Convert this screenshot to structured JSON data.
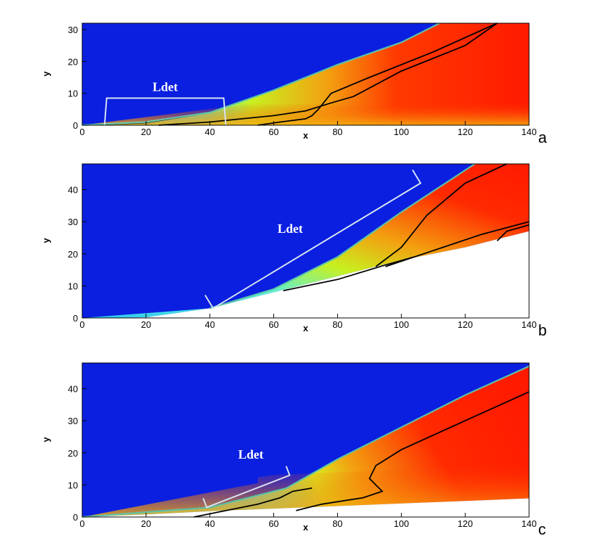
{
  "chart_data": [
    {
      "type": "heatmap",
      "panel_label": "a",
      "xlabel": "x",
      "ylabel": "y",
      "xlim": [
        0,
        140
      ],
      "ylim": [
        0,
        32
      ],
      "x_ticks": [
        0,
        20,
        40,
        60,
        80,
        100,
        120,
        140
      ],
      "y_ticks": [
        0,
        10,
        20,
        30
      ],
      "colors": {
        "background": "#0a1fe0",
        "cool": "#2ec8f5",
        "green": "#b4ee30",
        "hot": "#ff1a00",
        "warm": "#f39a10"
      },
      "wedge_surface": [
        [
          0,
          0
        ],
        [
          140,
          0
        ]
      ],
      "shock_front": [
        [
          0,
          0
        ],
        [
          20,
          1
        ],
        [
          40,
          4
        ],
        [
          60,
          11
        ],
        [
          80,
          19
        ],
        [
          100,
          26
        ],
        [
          112,
          32
        ]
      ],
      "contour_lines": [
        [
          [
            0,
            0
          ],
          [
            20,
            0.8
          ],
          [
            40,
            4
          ],
          [
            60,
            11
          ],
          [
            80,
            19
          ],
          [
            100,
            26
          ],
          [
            112,
            32
          ]
        ],
        [
          [
            24,
            0
          ],
          [
            40,
            1
          ],
          [
            50,
            2
          ],
          [
            60,
            3
          ],
          [
            70,
            4.5
          ],
          [
            78,
            7
          ],
          [
            85,
            9
          ],
          [
            100,
            17
          ],
          [
            120,
            25
          ],
          [
            130,
            32
          ]
        ],
        [
          [
            55,
            0
          ],
          [
            62,
            1
          ],
          [
            70,
            2
          ],
          [
            72,
            3
          ],
          [
            74,
            5
          ],
          [
            78,
            10
          ],
          [
            90,
            15
          ],
          [
            110,
            23
          ],
          [
            130,
            32
          ]
        ]
      ],
      "annotation": {
        "text": "Ldet",
        "x_start": 7,
        "x_end": 45,
        "y": 8.5
      }
    },
    {
      "type": "heatmap",
      "panel_label": "b",
      "xlabel": "x",
      "ylabel": "y",
      "xlim": [
        0,
        140
      ],
      "ylim": [
        0,
        48
      ],
      "x_ticks": [
        0,
        20,
        40,
        60,
        80,
        100,
        120,
        140
      ],
      "y_ticks": [
        0,
        10,
        20,
        30,
        40
      ],
      "colors": {
        "background": "#0a1fe0",
        "cool": "#2ec8f5",
        "green": "#b4ee30",
        "hot": "#ff1a00",
        "warm": "#f39a10"
      },
      "wedge_surface": [
        [
          0,
          0
        ],
        [
          20,
          0.2
        ],
        [
          40,
          3
        ],
        [
          60,
          8
        ],
        [
          80,
          13
        ],
        [
          100,
          18
        ],
        [
          120,
          22
        ],
        [
          140,
          27
        ]
      ],
      "shock_front": [
        [
          40,
          3
        ],
        [
          60,
          9
        ],
        [
          80,
          19
        ],
        [
          100,
          33
        ],
        [
          123,
          48
        ]
      ],
      "contour_lines": [
        [
          [
            40,
            3
          ],
          [
            60,
            9
          ],
          [
            80,
            19
          ],
          [
            100,
            33
          ],
          [
            123,
            48
          ]
        ],
        [
          [
            63,
            8.5
          ],
          [
            80,
            12
          ],
          [
            95,
            16.5
          ],
          [
            104,
            19
          ]
        ],
        [
          [
            92,
            16
          ],
          [
            100,
            22
          ],
          [
            108,
            32
          ],
          [
            120,
            42
          ],
          [
            133,
            48
          ]
        ],
        [
          [
            95,
            16
          ],
          [
            110,
            21
          ],
          [
            125,
            26
          ],
          [
            140,
            30
          ]
        ],
        [
          [
            130,
            24
          ],
          [
            133,
            27
          ],
          [
            140,
            29
          ]
        ]
      ],
      "annotation": {
        "text": "Ldet",
        "x_start": 41,
        "x_end": 106,
        "y_start": 3,
        "y_end": 42
      }
    },
    {
      "type": "heatmap",
      "panel_label": "c",
      "xlabel": "x",
      "ylabel": "y",
      "xlim": [
        0,
        140
      ],
      "ylim": [
        0,
        48
      ],
      "x_ticks": [
        0,
        20,
        40,
        60,
        80,
        100,
        120,
        140
      ],
      "y_ticks": [
        0,
        10,
        20,
        30,
        40
      ],
      "colors": {
        "background": "#0a1fe0",
        "cool": "#2ec8f5",
        "green": "#b4ee30",
        "hot": "#ff1a00",
        "warm": "#f39a10"
      },
      "wedge_surface": [
        [
          0,
          0
        ],
        [
          20,
          0.8
        ],
        [
          40,
          1.8
        ],
        [
          60,
          2.6
        ],
        [
          80,
          3.4
        ],
        [
          100,
          4.2
        ],
        [
          120,
          5
        ],
        [
          140,
          5.8
        ]
      ],
      "shock_front": [
        [
          0,
          0
        ],
        [
          40,
          3
        ],
        [
          64,
          9
        ],
        [
          80,
          18
        ],
        [
          100,
          28
        ],
        [
          120,
          38
        ],
        [
          140,
          47
        ]
      ],
      "contour_lines": [
        [
          [
            0,
            0
          ],
          [
            40,
            3
          ],
          [
            64,
            9
          ],
          [
            80,
            18
          ],
          [
            100,
            28
          ],
          [
            120,
            38
          ],
          [
            140,
            47
          ]
        ],
        [
          [
            35,
            0
          ],
          [
            45,
            2
          ],
          [
            55,
            4
          ],
          [
            62,
            6
          ],
          [
            66,
            8
          ],
          [
            72,
            9
          ]
        ],
        [
          [
            67,
            2
          ],
          [
            75,
            4
          ],
          [
            88,
            6
          ],
          [
            94,
            8
          ],
          [
            92,
            10
          ],
          [
            90,
            12
          ],
          [
            92,
            16
          ],
          [
            100,
            21
          ],
          [
            120,
            30
          ],
          [
            140,
            39
          ]
        ]
      ],
      "annotation": {
        "text": "Ldet",
        "x_start": 39,
        "x_end": 65,
        "y_start": 3,
        "y_end": 13
      }
    }
  ]
}
